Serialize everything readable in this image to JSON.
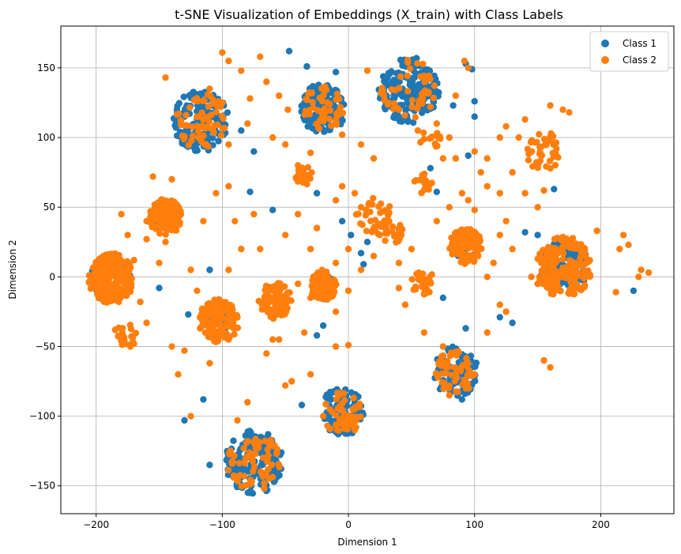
{
  "chart_data": {
    "type": "scatter",
    "title": "t-SNE Visualization of Embeddings (X_train) with Class Labels",
    "xlabel": "Dimension 1",
    "ylabel": "Dimension 2",
    "xlim": [
      -228,
      258
    ],
    "ylim": [
      -170,
      180
    ],
    "xticks": [
      -200,
      -100,
      0,
      100,
      200
    ],
    "yticks": [
      -150,
      -100,
      -50,
      0,
      50,
      100,
      150
    ],
    "grid": true,
    "legend_position": "top-right",
    "series": [
      {
        "name": "Class 1",
        "color": "#1f77b4",
        "clusters": [
          {
            "cx": -117,
            "cy": 112,
            "r": 22,
            "n": 170
          },
          {
            "cx": -20,
            "cy": 121,
            "r": 18,
            "n": 120
          },
          {
            "cx": 48,
            "cy": 134,
            "r": 24,
            "n": 190
          },
          {
            "cx": 171,
            "cy": 7,
            "r": 20,
            "n": 120
          },
          {
            "cx": 85,
            "cy": -68,
            "r": 18,
            "n": 90
          },
          {
            "cx": -5,
            "cy": -97,
            "r": 18,
            "n": 90
          },
          {
            "cx": -75,
            "cy": -133,
            "r": 23,
            "n": 150
          },
          {
            "cx": -188,
            "cy": -1,
            "r": 16,
            "n": 60
          },
          {
            "cx": -145,
            "cy": 43,
            "r": 11,
            "n": 25
          },
          {
            "cx": 93,
            "cy": 22,
            "r": 11,
            "n": 25
          },
          {
            "cx": -20,
            "cy": -6,
            "r": 10,
            "n": 15
          },
          {
            "cx": -58,
            "cy": -17,
            "r": 10,
            "n": 15
          },
          {
            "cx": -103,
            "cy": -32,
            "r": 12,
            "n": 15
          }
        ],
        "points": [
          [
            -130,
            -103
          ],
          [
            -115,
            -88
          ],
          [
            -110,
            -135
          ],
          [
            -47,
            162
          ],
          [
            -33,
            151
          ],
          [
            -10,
            147
          ],
          [
            93,
            153
          ],
          [
            98,
            149
          ],
          [
            100,
            126
          ],
          [
            100,
            115
          ],
          [
            83,
            123
          ],
          [
            -37,
            77
          ],
          [
            -25,
            60
          ],
          [
            -5,
            40
          ],
          [
            10,
            17
          ],
          [
            12,
            9
          ],
          [
            15,
            25
          ],
          [
            2,
            30
          ],
          [
            -78,
            61
          ],
          [
            -60,
            48
          ],
          [
            -127,
            -27
          ],
          [
            -110,
            5
          ],
          [
            65,
            78
          ],
          [
            70,
            61
          ],
          [
            75,
            -15
          ],
          [
            55,
            2
          ],
          [
            120,
            -29
          ],
          [
            130,
            -33
          ],
          [
            163,
            63
          ],
          [
            168,
            -10
          ],
          [
            226,
            -10
          ],
          [
            140,
            32
          ],
          [
            150,
            30
          ],
          [
            -37,
            -92
          ],
          [
            -25,
            -42
          ],
          [
            -20,
            -35
          ],
          [
            -150,
            -8
          ],
          [
            90,
            -88
          ],
          [
            93,
            -37
          ],
          [
            95,
            87
          ],
          [
            -85,
            105
          ],
          [
            -75,
            90
          ]
        ]
      },
      {
        "name": "Class 2",
        "color": "#ff7f0e",
        "clusters": [
          {
            "cx": -117,
            "cy": 112,
            "r": 20,
            "n": 60
          },
          {
            "cx": -20,
            "cy": 121,
            "r": 16,
            "n": 45
          },
          {
            "cx": 48,
            "cy": 134,
            "r": 22,
            "n": 45
          },
          {
            "cx": 171,
            "cy": 7,
            "r": 22,
            "n": 200
          },
          {
            "cx": 155,
            "cy": 90,
            "r": 14,
            "n": 40
          },
          {
            "cx": -145,
            "cy": 43,
            "r": 13,
            "n": 130
          },
          {
            "cx": -188,
            "cy": -1,
            "r": 18,
            "n": 200
          },
          {
            "cx": 93,
            "cy": 22,
            "r": 13,
            "n": 110
          },
          {
            "cx": -20,
            "cy": -6,
            "r": 11,
            "n": 90
          },
          {
            "cx": -58,
            "cy": -17,
            "r": 13,
            "n": 110
          },
          {
            "cx": -103,
            "cy": -32,
            "r": 16,
            "n": 120
          },
          {
            "cx": 85,
            "cy": -68,
            "r": 16,
            "n": 55
          },
          {
            "cx": -5,
            "cy": -97,
            "r": 16,
            "n": 50
          },
          {
            "cx": -75,
            "cy": -133,
            "r": 21,
            "n": 70
          },
          {
            "cx": -35,
            "cy": 73,
            "r": 7,
            "n": 25
          },
          {
            "cx": 33,
            "cy": 32,
            "r": 10,
            "n": 30
          },
          {
            "cx": 60,
            "cy": -4,
            "r": 10,
            "n": 25
          },
          {
            "cx": -175,
            "cy": -42,
            "r": 9,
            "n": 20
          },
          {
            "cx": 65,
            "cy": 98,
            "r": 8,
            "n": 15
          },
          {
            "cx": 60,
            "cy": 67,
            "r": 8,
            "n": 15
          },
          {
            "cx": 20,
            "cy": 45,
            "r": 14,
            "n": 30
          }
        ],
        "points": [
          [
            -145,
            143
          ],
          [
            -155,
            72
          ],
          [
            -160,
            27
          ],
          [
            -170,
            12
          ],
          [
            -165,
            -18
          ],
          [
            -160,
            -33
          ],
          [
            -140,
            -50
          ],
          [
            -130,
            -53
          ],
          [
            -135,
            -70
          ],
          [
            -125,
            -100
          ],
          [
            -110,
            -62
          ],
          [
            -100,
            -20
          ],
          [
            -95,
            5
          ],
          [
            -85,
            20
          ],
          [
            -90,
            40
          ],
          [
            -115,
            40
          ],
          [
            -105,
            60
          ],
          [
            -95,
            65
          ],
          [
            -75,
            45
          ],
          [
            -70,
            20
          ],
          [
            -50,
            30
          ],
          [
            -40,
            45
          ],
          [
            -30,
            20
          ],
          [
            -25,
            35
          ],
          [
            -10,
            55
          ],
          [
            -5,
            65
          ],
          [
            5,
            60
          ],
          [
            10,
            50
          ],
          [
            0,
            20
          ],
          [
            -10,
            10
          ],
          [
            -35,
            -40
          ],
          [
            -30,
            -70
          ],
          [
            -45,
            -75
          ],
          [
            -50,
            -78
          ],
          [
            -60,
            -45
          ],
          [
            -10,
            -50
          ],
          [
            0,
            -49
          ],
          [
            5,
            -110
          ],
          [
            -20,
            -100
          ],
          [
            -100,
            161
          ],
          [
            -95,
            155
          ],
          [
            -85,
            148
          ],
          [
            -70,
            158
          ],
          [
            -65,
            140
          ],
          [
            -55,
            130
          ],
          [
            -48,
            120
          ],
          [
            -78,
            128
          ],
          [
            -80,
            110
          ],
          [
            -60,
            100
          ],
          [
            -50,
            95
          ],
          [
            -40,
            80
          ],
          [
            -30,
            89
          ],
          [
            -5,
            102
          ],
          [
            10,
            95
          ],
          [
            20,
            85
          ],
          [
            15,
            148
          ],
          [
            40,
            120
          ],
          [
            80,
            100
          ],
          [
            85,
            85
          ],
          [
            100,
            90
          ],
          [
            110,
            85
          ],
          [
            120,
            100
          ],
          [
            125,
            108
          ],
          [
            140,
            113
          ],
          [
            160,
            123
          ],
          [
            170,
            120
          ],
          [
            175,
            118
          ],
          [
            135,
            100
          ],
          [
            105,
            75
          ],
          [
            110,
            65
          ],
          [
            120,
            60
          ],
          [
            130,
            75
          ],
          [
            140,
            60
          ],
          [
            150,
            50
          ],
          [
            155,
            62
          ],
          [
            125,
            40
          ],
          [
            120,
            30
          ],
          [
            130,
            20
          ],
          [
            115,
            10
          ],
          [
            110,
            0
          ],
          [
            120,
            -20
          ],
          [
            125,
            -25
          ],
          [
            145,
            0
          ],
          [
            150,
            -5
          ],
          [
            155,
            -60
          ],
          [
            160,
            -65
          ],
          [
            197,
            33
          ],
          [
            218,
            30
          ],
          [
            222,
            23
          ],
          [
            215,
            20
          ],
          [
            212,
            -11
          ],
          [
            232,
            5
          ],
          [
            238,
            3
          ],
          [
            230,
            0
          ],
          [
            70,
            40
          ],
          [
            80,
            50
          ],
          [
            90,
            60
          ],
          [
            95,
            55
          ],
          [
            100,
            48
          ],
          [
            75,
            85
          ],
          [
            70,
            110
          ],
          [
            55,
            105
          ],
          [
            65,
            122
          ],
          [
            85,
            130
          ],
          [
            -175,
            30
          ],
          [
            -180,
            45
          ],
          [
            -160,
            40
          ],
          [
            -140,
            70
          ],
          [
            -145,
            25
          ],
          [
            -185,
            -38
          ],
          [
            -170,
            -48
          ],
          [
            -150,
            10
          ],
          [
            -125,
            5
          ],
          [
            -120,
            -10
          ],
          [
            -95,
            -45
          ],
          [
            -65,
            -55
          ],
          [
            -55,
            -45
          ],
          [
            -40,
            -5
          ],
          [
            -30,
            -15
          ],
          [
            -10,
            -25
          ],
          [
            0,
            -10
          ],
          [
            10,
            5
          ],
          [
            20,
            15
          ],
          [
            40,
            10
          ],
          [
            45,
            -20
          ],
          [
            60,
            -40
          ],
          [
            75,
            -50
          ],
          [
            80,
            -85
          ],
          [
            100,
            -70
          ],
          [
            110,
            -40
          ],
          [
            -88,
            -103
          ],
          [
            -80,
            -90
          ],
          [
            40,
            -8
          ],
          [
            50,
            20
          ],
          [
            -130,
            100
          ],
          [
            -110,
            135
          ],
          [
            -100,
            125
          ],
          [
            -95,
            95
          ],
          [
            92,
            155
          ],
          [
            95,
            150
          ]
        ]
      }
    ]
  }
}
